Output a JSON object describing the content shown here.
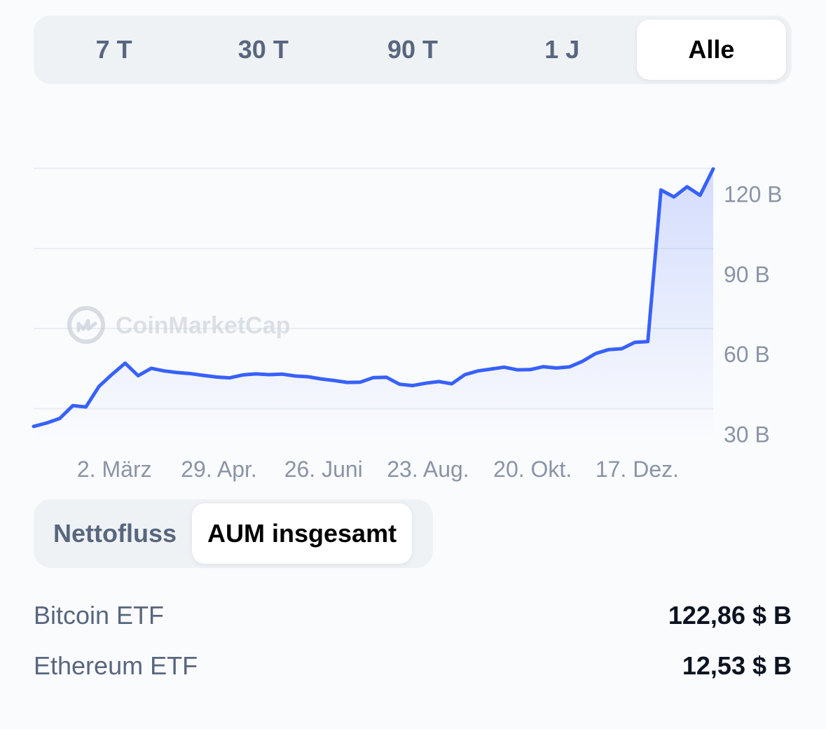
{
  "range_tabs": [
    {
      "label": "7 T",
      "active": false
    },
    {
      "label": "30 T",
      "active": false
    },
    {
      "label": "90 T",
      "active": false
    },
    {
      "label": "1 J",
      "active": false
    },
    {
      "label": "Alle",
      "active": true
    }
  ],
  "watermark": "CoinMarketCap",
  "metric_tabs": [
    {
      "label": "Nettofluss",
      "active": false
    },
    {
      "label": "AUM insgesamt",
      "active": true
    }
  ],
  "etfs": [
    {
      "name": "Bitcoin ETF",
      "value": "122,86 $ B"
    },
    {
      "name": "Ethereum ETF",
      "value": "12,53 $ B"
    }
  ],
  "colors": {
    "line": "#3861fb",
    "fill": "#3861fb",
    "tab_bg": "#eff2f5",
    "label": "#58667e",
    "axis_label": "#8a94a6"
  },
  "chart_data": {
    "type": "area",
    "title": "",
    "xlabel": "",
    "ylabel": "",
    "y_ticks": [
      {
        "value": 120,
        "label": "120  B"
      },
      {
        "value": 90,
        "label": "90  B"
      },
      {
        "value": 60,
        "label": "60  B"
      },
      {
        "value": 30,
        "label": "30  B"
      }
    ],
    "x_ticks": [
      {
        "value": 5,
        "label": "2. März"
      },
      {
        "value": 13,
        "label": "29. Apr."
      },
      {
        "value": 21,
        "label": "26. Juni"
      },
      {
        "value": 29,
        "label": "23. Aug."
      },
      {
        "value": 37,
        "label": "20. Okt."
      },
      {
        "value": 45,
        "label": "17. Dez."
      }
    ],
    "ylim": [
      26,
      130
    ],
    "xlim": [
      0,
      50
    ],
    "grid": true,
    "series": [
      {
        "values": [
          [
            0,
            27.0
          ],
          [
            1,
            28.3
          ],
          [
            2,
            30.0
          ],
          [
            3,
            34.8
          ],
          [
            4,
            34.3
          ],
          [
            5,
            42.0
          ],
          [
            6,
            46.5
          ],
          [
            7,
            50.7
          ],
          [
            8,
            46.0
          ],
          [
            9,
            48.8
          ],
          [
            10,
            47.8
          ],
          [
            11,
            47.2
          ],
          [
            12,
            46.8
          ],
          [
            13,
            46.1
          ],
          [
            14,
            45.5
          ],
          [
            15,
            45.2
          ],
          [
            16,
            46.3
          ],
          [
            17,
            46.7
          ],
          [
            18,
            46.4
          ],
          [
            19,
            46.6
          ],
          [
            20,
            45.9
          ],
          [
            21,
            45.6
          ],
          [
            22,
            44.8
          ],
          [
            23,
            44.2
          ],
          [
            24,
            43.5
          ],
          [
            25,
            43.6
          ],
          [
            26,
            45.3
          ],
          [
            27,
            45.4
          ],
          [
            28,
            42.8
          ],
          [
            29,
            42.3
          ],
          [
            30,
            43.2
          ],
          [
            31,
            43.8
          ],
          [
            32,
            43.0
          ],
          [
            33,
            46.4
          ],
          [
            34,
            47.8
          ],
          [
            35,
            48.5
          ],
          [
            36,
            49.2
          ],
          [
            37,
            48.2
          ],
          [
            38,
            48.3
          ],
          [
            39,
            49.4
          ],
          [
            40,
            48.9
          ],
          [
            41,
            49.3
          ],
          [
            42,
            51.4
          ],
          [
            43,
            54.3
          ],
          [
            44,
            55.8
          ],
          [
            45,
            56.1
          ],
          [
            46,
            58.5
          ],
          [
            47,
            58.8
          ],
          [
            48,
            115.6
          ],
          [
            49,
            113.0
          ],
          [
            50,
            116.8
          ],
          [
            51,
            113.6
          ],
          [
            52,
            123.5
          ]
        ]
      }
    ]
  }
}
